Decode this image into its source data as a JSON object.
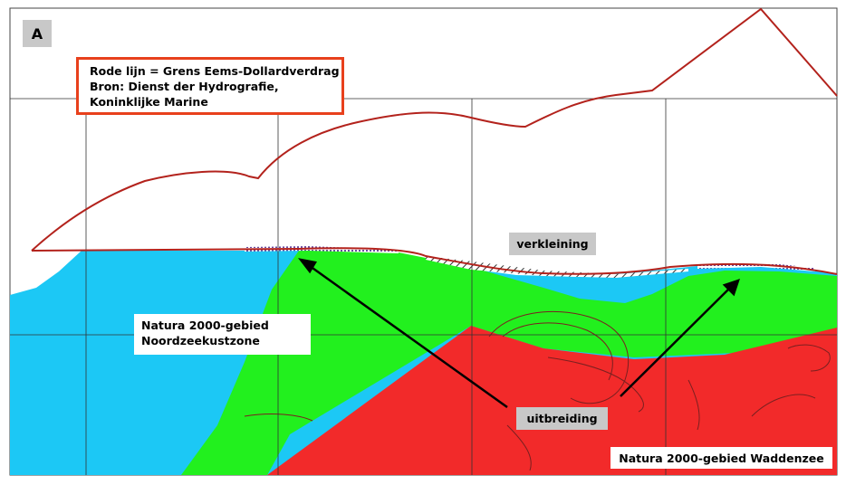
{
  "panel_label": "A",
  "legend": {
    "line1": "Rode lijn = Grens Eems-Dollardverdrag",
    "line2": "Bron: Dienst der Hydrografie,",
    "line3": "Koninklijke Marine"
  },
  "labels": {
    "verkleining": "verkleining",
    "noordzee_line1": "Natura 2000-gebied",
    "noordzee_line2": "Noordzeekustzone",
    "uitbreiding": "uitbreiding",
    "waddenzee": "Natura 2000-gebied Waddenzee"
  },
  "colors": {
    "boundary_line": "#b3221c",
    "legend_border": "#e8401c",
    "noordzeekustzone": "#1cc8f5",
    "expansion": "#22f01e",
    "waddenzee": "#f22a2a",
    "label_bg": "#c8c8c8"
  }
}
